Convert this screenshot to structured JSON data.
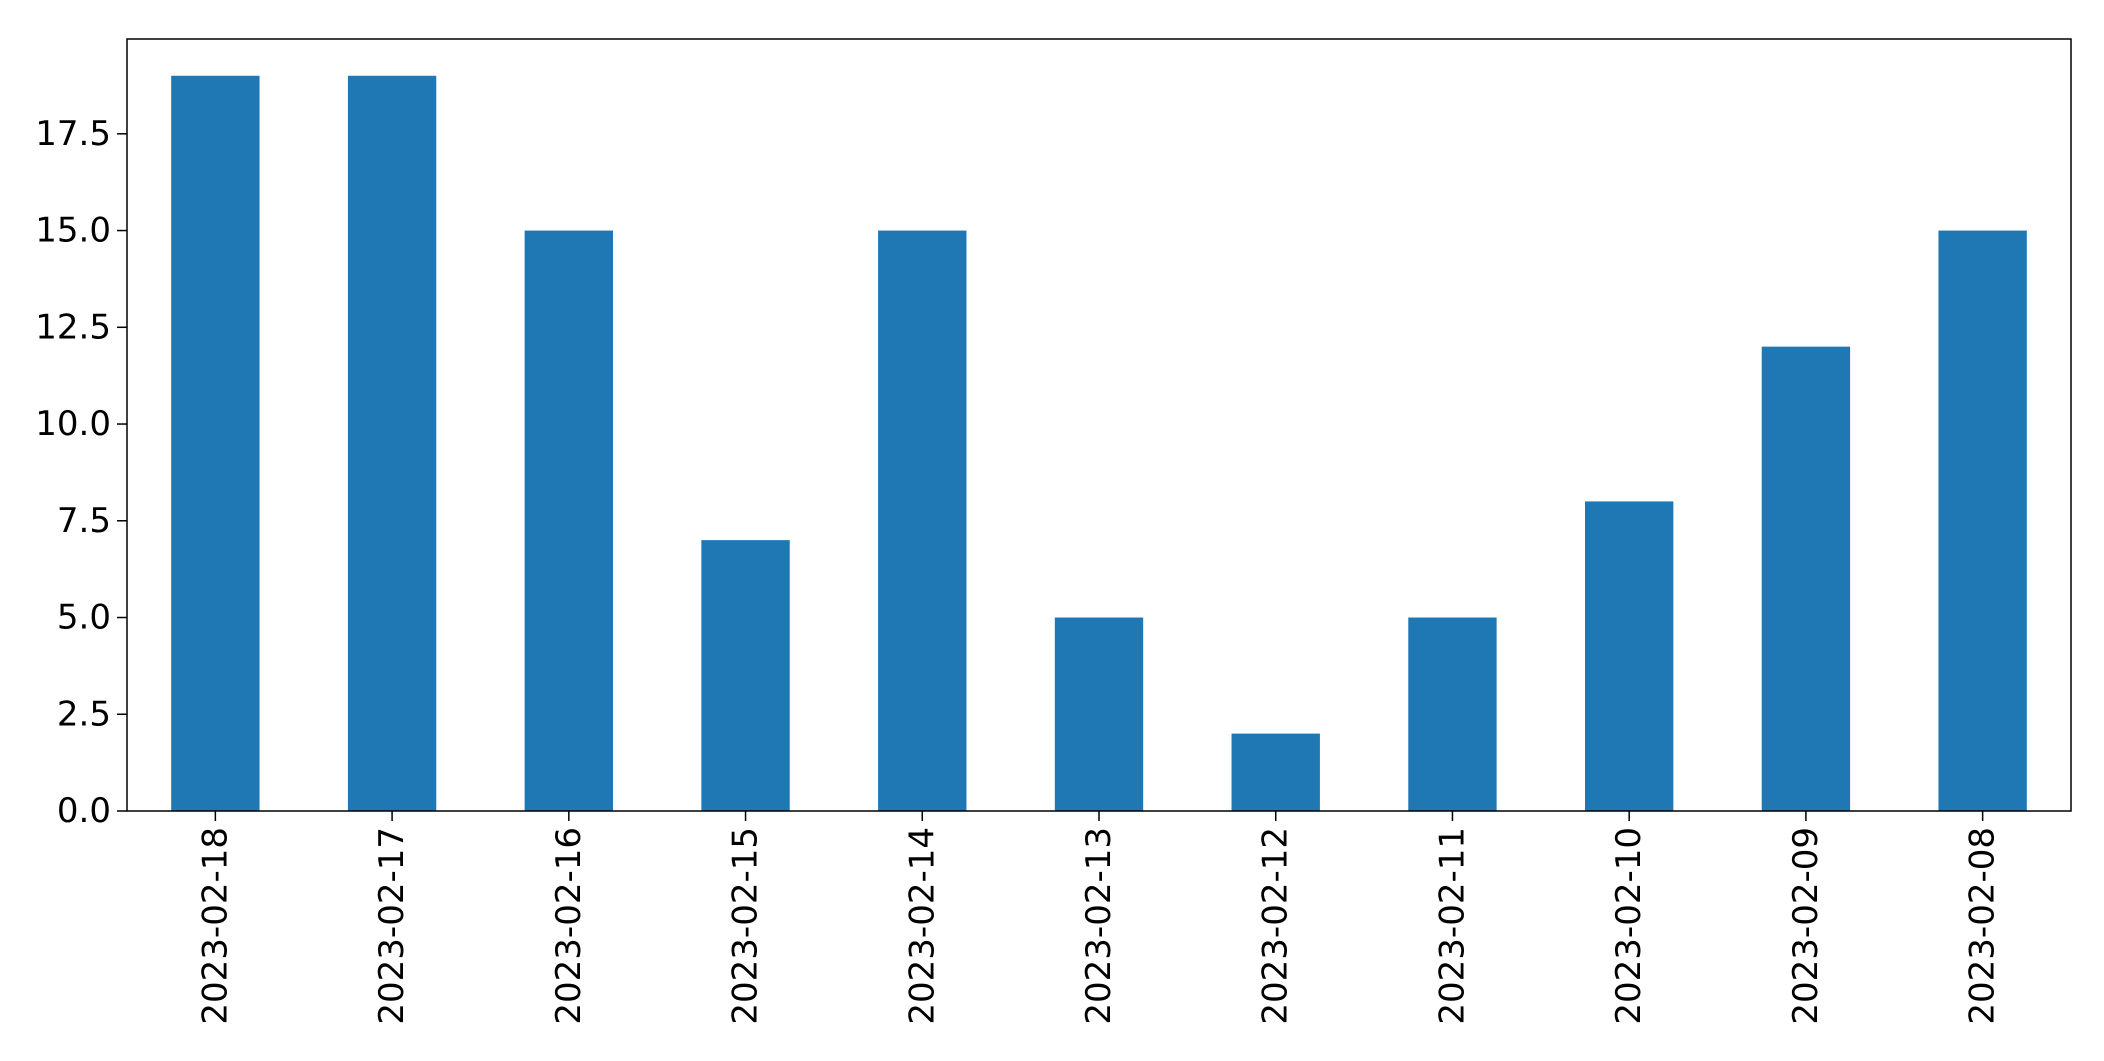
{
  "chart_data": {
    "type": "bar",
    "title": "",
    "xlabel": "",
    "ylabel": "",
    "categories": [
      "2023-02-18",
      "2023-02-17",
      "2023-02-16",
      "2023-02-15",
      "2023-02-14",
      "2023-02-13",
      "2023-02-12",
      "2023-02-11",
      "2023-02-10",
      "2023-02-09",
      "2023-02-08"
    ],
    "values": [
      19,
      19,
      15,
      7,
      15,
      5,
      2,
      5,
      8,
      12,
      15
    ],
    "ylim": [
      0,
      19.95
    ],
    "yticks": [
      0.0,
      2.5,
      5.0,
      7.5,
      10.0,
      12.5,
      15.0,
      17.5
    ],
    "ytick_labels": [
      "0.0",
      "2.5",
      "5.0",
      "7.5",
      "10.0",
      "12.5",
      "15.0",
      "17.5"
    ],
    "bar_color": "#1f77b4",
    "grid": false,
    "legend": "none"
  }
}
